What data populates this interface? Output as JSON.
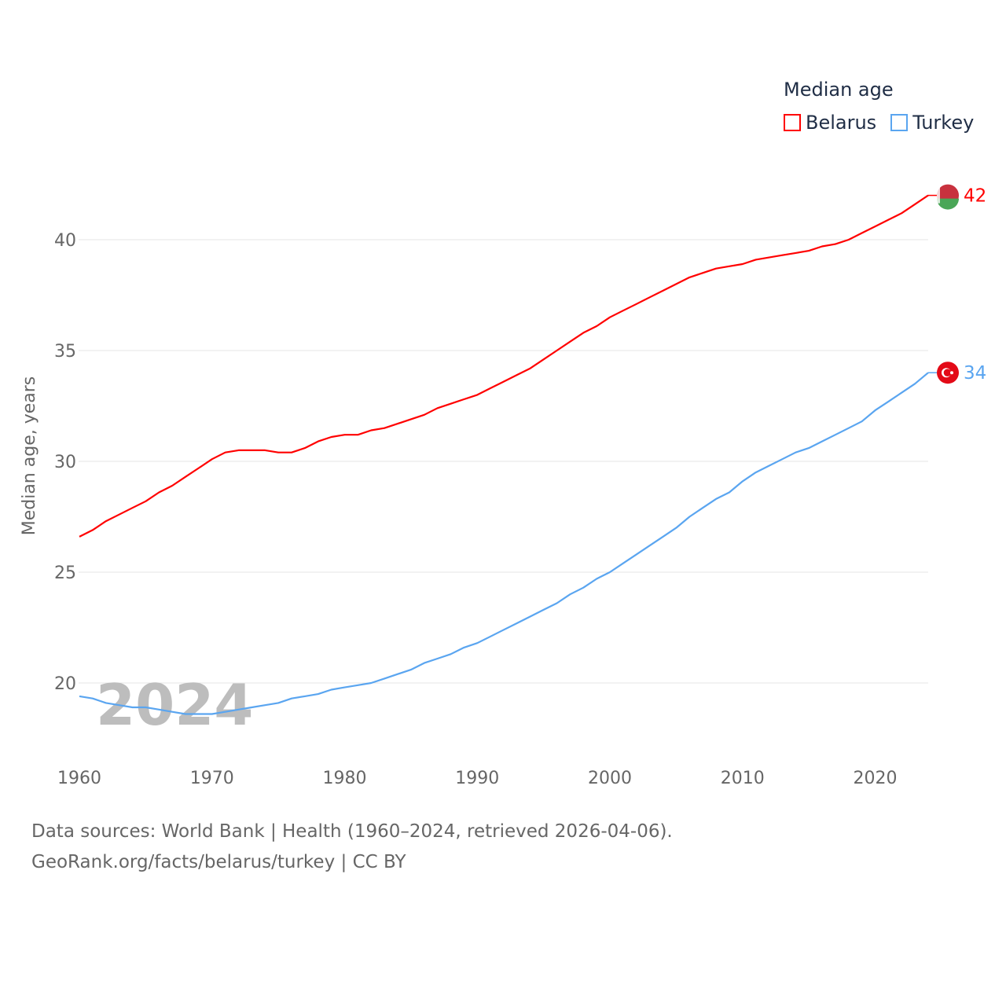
{
  "chart_data": {
    "type": "line",
    "legend_title": "Median age",
    "ylabel": "Median age, years",
    "xlabel": "",
    "xlim": [
      1960,
      2024
    ],
    "ylim": [
      17,
      43
    ],
    "yticks": [
      20,
      25,
      30,
      35,
      40
    ],
    "xticks": [
      1960,
      1970,
      1980,
      1990,
      2000,
      2010,
      2020
    ],
    "grid": true,
    "legend_position": "top-right",
    "year_watermark": "2024",
    "x": [
      1960,
      1961,
      1962,
      1963,
      1964,
      1965,
      1966,
      1967,
      1968,
      1969,
      1970,
      1971,
      1972,
      1973,
      1974,
      1975,
      1976,
      1977,
      1978,
      1979,
      1980,
      1981,
      1982,
      1983,
      1984,
      1985,
      1986,
      1987,
      1988,
      1989,
      1990,
      1991,
      1992,
      1993,
      1994,
      1995,
      1996,
      1997,
      1998,
      1999,
      2000,
      2001,
      2002,
      2003,
      2004,
      2005,
      2006,
      2007,
      2008,
      2009,
      2010,
      2011,
      2012,
      2013,
      2014,
      2015,
      2016,
      2017,
      2018,
      2019,
      2020,
      2021,
      2022,
      2023,
      2024
    ],
    "series": [
      {
        "name": "Belarus",
        "color": "#ff0000",
        "end_label": "42",
        "values": [
          26.6,
          26.9,
          27.3,
          27.6,
          27.9,
          28.2,
          28.6,
          28.9,
          29.3,
          29.7,
          30.1,
          30.4,
          30.5,
          30.5,
          30.5,
          30.4,
          30.4,
          30.6,
          30.9,
          31.1,
          31.2,
          31.2,
          31.4,
          31.5,
          31.7,
          31.9,
          32.1,
          32.4,
          32.6,
          32.8,
          33.0,
          33.3,
          33.6,
          33.9,
          34.2,
          34.6,
          35.0,
          35.4,
          35.8,
          36.1,
          36.5,
          36.8,
          37.1,
          37.4,
          37.7,
          38.0,
          38.3,
          38.5,
          38.7,
          38.8,
          38.9,
          39.1,
          39.2,
          39.3,
          39.4,
          39.5,
          39.7,
          39.8,
          40.0,
          40.3,
          40.6,
          40.9,
          41.2,
          41.6,
          42.0
        ]
      },
      {
        "name": "Turkey",
        "color": "#5aa5f0",
        "end_label": "34",
        "values": [
          19.4,
          19.3,
          19.1,
          19.0,
          18.9,
          18.9,
          18.8,
          18.7,
          18.6,
          18.6,
          18.6,
          18.7,
          18.8,
          18.9,
          19.0,
          19.1,
          19.3,
          19.4,
          19.5,
          19.7,
          19.8,
          19.9,
          20.0,
          20.2,
          20.4,
          20.6,
          20.9,
          21.1,
          21.3,
          21.6,
          21.8,
          22.1,
          22.4,
          22.7,
          23.0,
          23.3,
          23.6,
          24.0,
          24.3,
          24.7,
          25.0,
          25.4,
          25.8,
          26.2,
          26.6,
          27.0,
          27.5,
          27.9,
          28.3,
          28.6,
          29.1,
          29.5,
          29.8,
          30.1,
          30.4,
          30.6,
          30.9,
          31.2,
          31.5,
          31.8,
          32.3,
          32.7,
          33.1,
          33.5,
          34.0
        ]
      }
    ]
  },
  "footer": {
    "line1": "Data sources: World Bank | Health (1960–2024, retrieved 2026-04-06).",
    "line2": "GeoRank.org/facts/belarus/turkey | CC BY"
  }
}
